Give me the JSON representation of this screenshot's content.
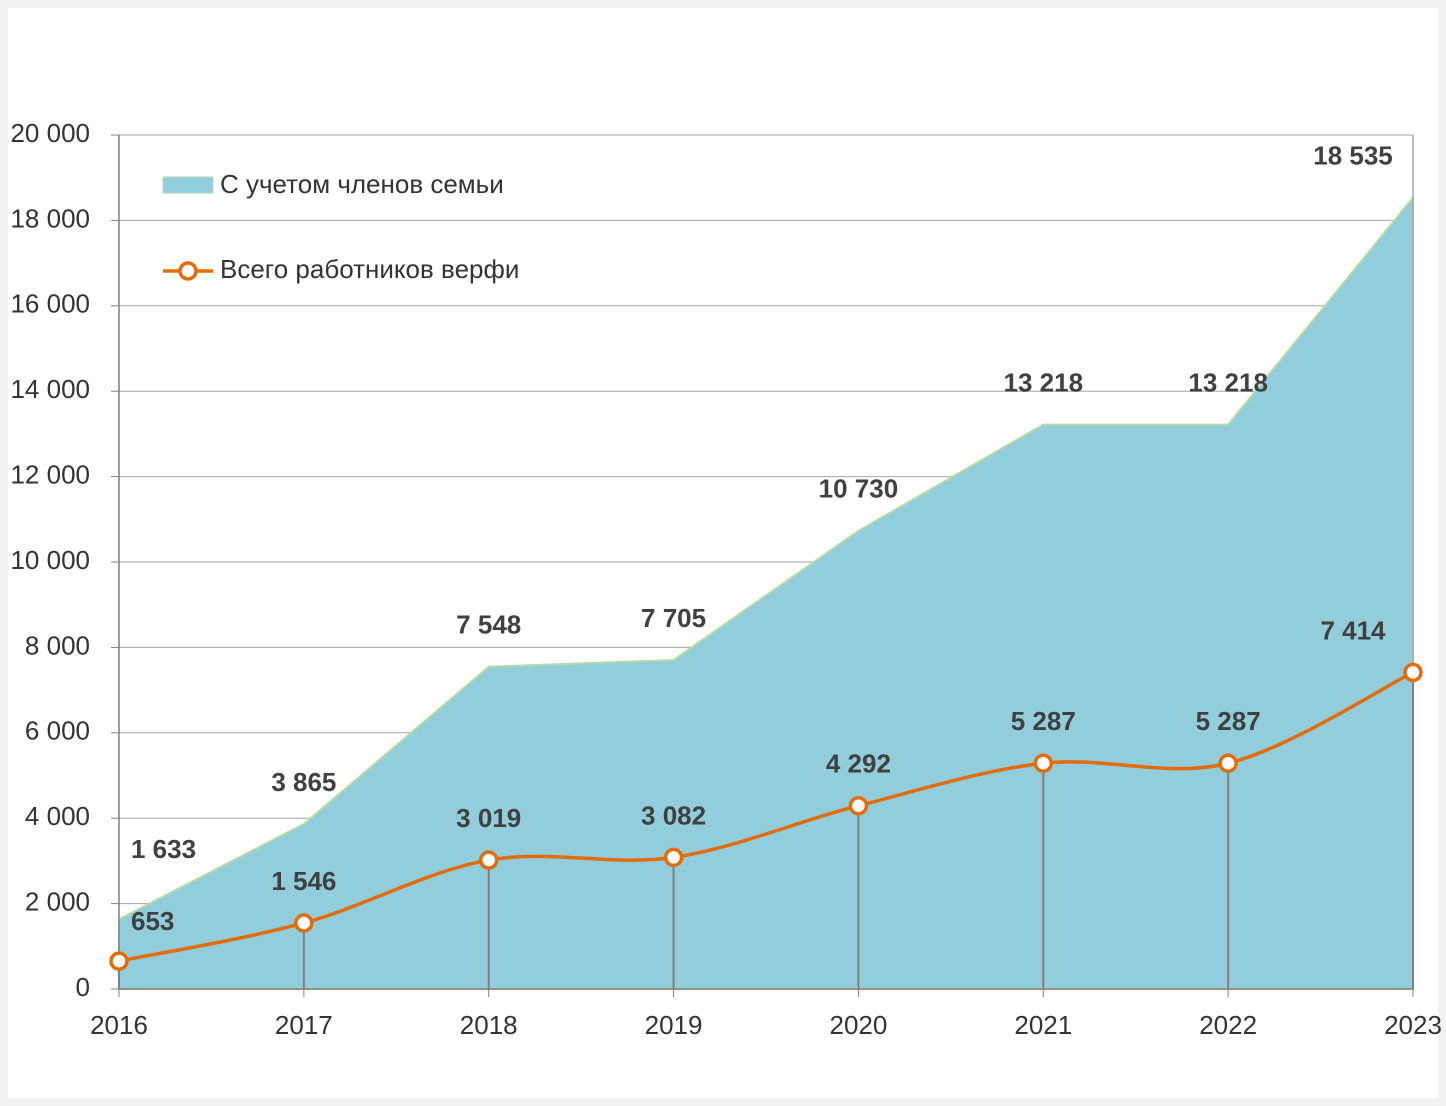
{
  "chart_data": {
    "type": "area-line",
    "categories": [
      "2016",
      "2017",
      "2018",
      "2019",
      "2020",
      "2021",
      "2022",
      "2023"
    ],
    "series": [
      {
        "name": "С учетом членов семьи",
        "type": "area",
        "color": "#92cddc",
        "values": [
          1633,
          3865,
          7548,
          7705,
          10730,
          13218,
          13218,
          18535
        ],
        "value_labels": [
          "1 633",
          "3 865",
          "7 548",
          "7 705",
          "10 730",
          "13 218",
          "13 218",
          "18 535"
        ]
      },
      {
        "name": "Всего работников верфи",
        "type": "line",
        "color": "#e36c0a",
        "values": [
          653,
          1546,
          3019,
          3082,
          4292,
          5287,
          5287,
          7414
        ],
        "value_labels": [
          "653",
          "1 546",
          "3 019",
          "3 082",
          "4 292",
          "5 287",
          "5 287",
          "7 414"
        ]
      }
    ],
    "ylim": [
      0,
      20000
    ],
    "yticks": [
      0,
      {
        "value": 2000,
        "label": "2 000"
      },
      {
        "value": 4000,
        "label": "4 000"
      },
      {
        "value": 6000,
        "label": "6 000"
      },
      {
        "value": 8000,
        "label": "8 000"
      },
      {
        "value": 10000,
        "label": "10 000"
      },
      {
        "value": 12000,
        "label": "12 000"
      },
      {
        "value": 14000,
        "label": "14 000"
      },
      {
        "value": 16000,
        "label": "16 000"
      },
      {
        "value": 18000,
        "label": "18 000"
      },
      {
        "value": 20000,
        "label": "20 000"
      }
    ],
    "grid": true,
    "legend": "upper left"
  }
}
